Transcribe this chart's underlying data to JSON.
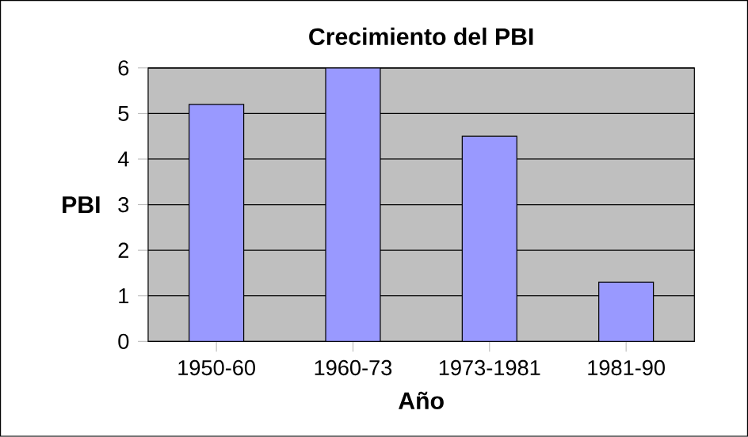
{
  "chart_data": {
    "type": "bar",
    "title": "Crecimiento del PBI",
    "xlabel": "Año",
    "ylabel": "PBI",
    "categories": [
      "1950-60",
      "1960-73",
      "1973-1981",
      "1981-90"
    ],
    "values": [
      5.2,
      6.0,
      4.5,
      1.3
    ],
    "color": "#9999ff",
    "ylim": [
      0,
      6
    ],
    "yticks": [
      0,
      1,
      2,
      3,
      4,
      5,
      6
    ],
    "grid": "y"
  }
}
